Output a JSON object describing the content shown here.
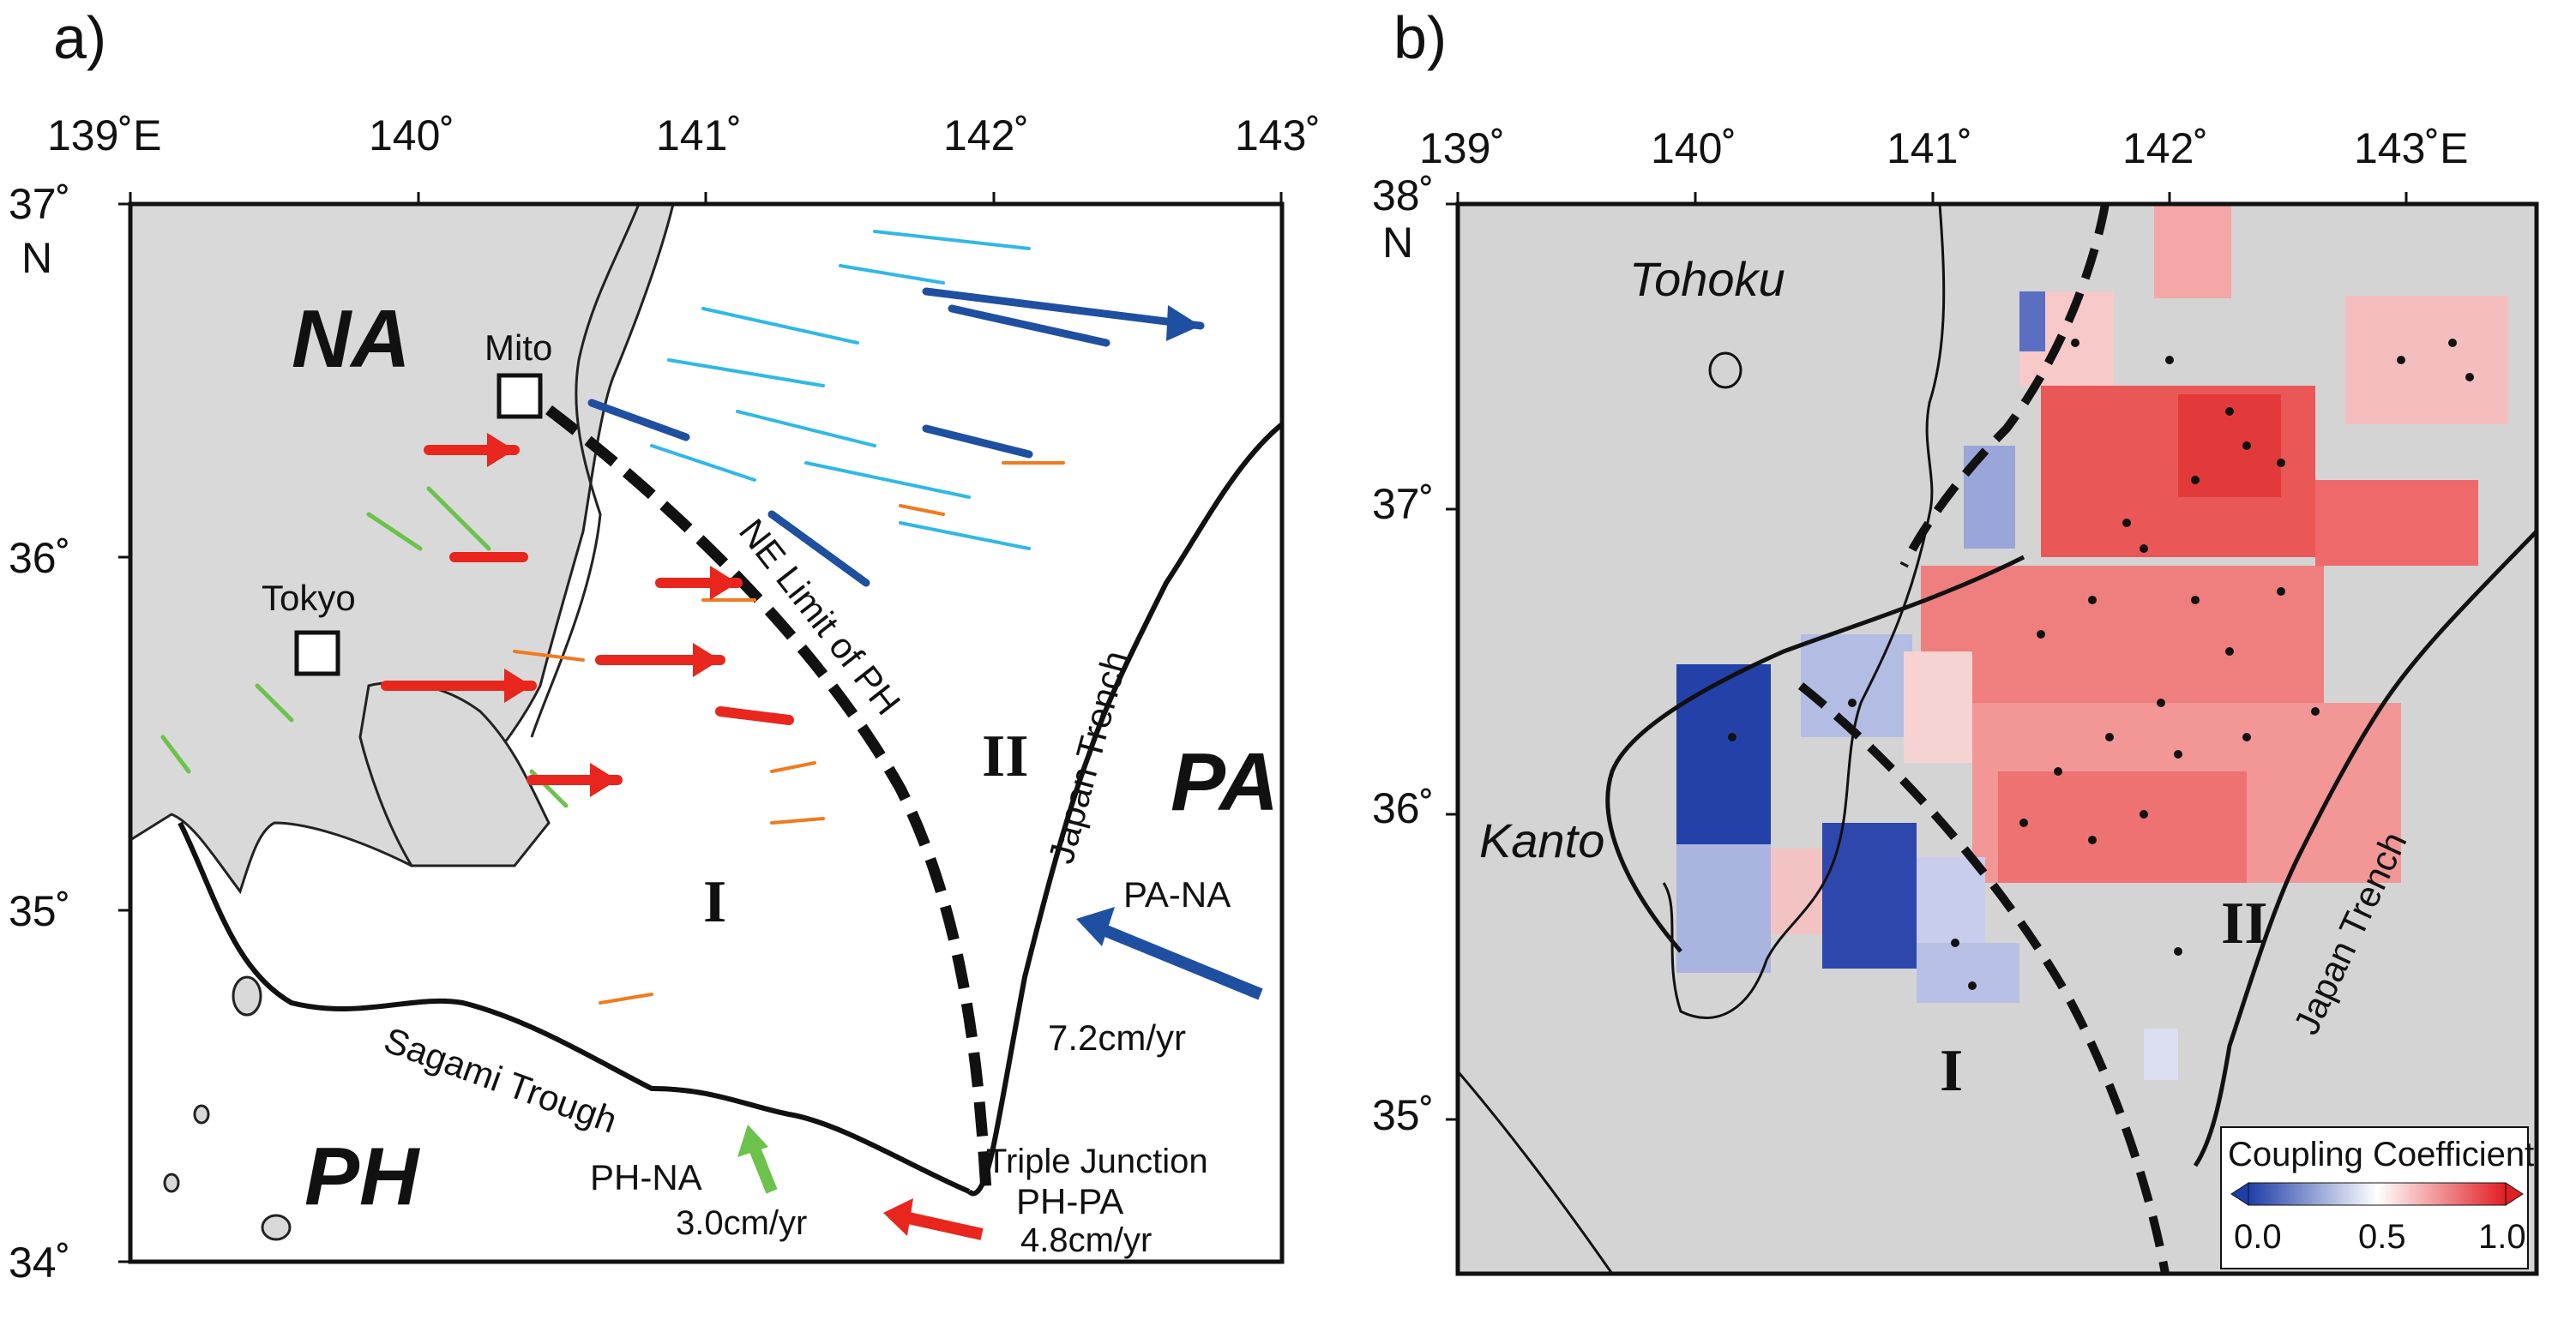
{
  "panel_a": {
    "label": "a)",
    "lon_ticks": [
      "139˚E",
      "140˚",
      "141˚",
      "142˚",
      "143˚"
    ],
    "lat_ticks": [
      "37˚",
      "36˚",
      "35˚",
      "34˚"
    ],
    "lat_unit": "N",
    "plates": [
      "NA",
      "PA",
      "PH"
    ],
    "places": {
      "mito": "Mito",
      "tokyo": "Tokyo"
    },
    "features": {
      "ne_limit": "NE Limit of PH",
      "japan_trench": "Japan Trench",
      "sagami_trough": "Sagami Trough",
      "triple_junction": "Triple Junction"
    },
    "regions": [
      "I",
      "II"
    ],
    "velocities": [
      {
        "label": "PA-NA",
        "rate": "7.2cm/yr",
        "color": "#1f4fa0"
      },
      {
        "label": "PH-NA",
        "rate": "3.0cm/yr",
        "color": "#6cc24a"
      },
      {
        "label": "PH-PA",
        "rate": "4.8cm/yr",
        "color": "#e8261e"
      }
    ]
  },
  "panel_b": {
    "label": "b)",
    "lon_ticks": [
      "139˚",
      "140˚",
      "141˚",
      "142˚",
      "143˚E"
    ],
    "lat_ticks": [
      "38˚",
      "37˚",
      "36˚",
      "35˚"
    ],
    "lat_unit": "N",
    "places": {
      "tohoku": "Tohoku",
      "kanto": "Kanto"
    },
    "features": {
      "japan_trench": "Japan Trench"
    },
    "regions": [
      "I",
      "II"
    ],
    "colorbar": {
      "title": "Coupling Coefficient",
      "ticks": [
        "0.0",
        "0.5",
        "1.0"
      ],
      "colors": [
        "#1f3ea8",
        "#ffffff",
        "#e01e24"
      ]
    }
  }
}
